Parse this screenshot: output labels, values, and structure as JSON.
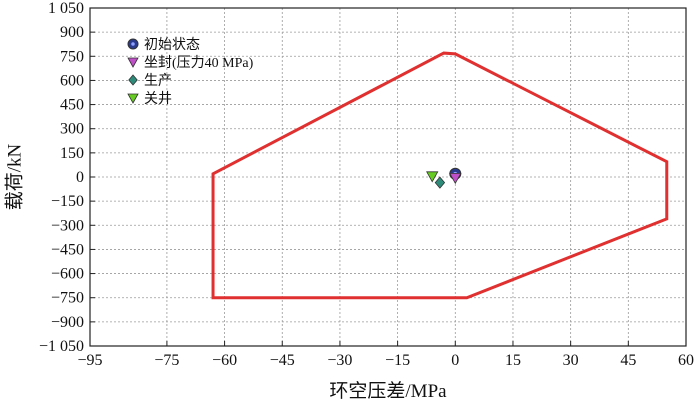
{
  "chart_data": {
    "type": "scatter",
    "xlabel": "环空压差/MPa",
    "ylabel": "载荷/kN",
    "xlim": [
      -95,
      60
    ],
    "ylim": [
      -1050,
      1050
    ],
    "x_ticks": [
      -95,
      -75,
      -60,
      -45,
      -30,
      -15,
      0,
      15,
      30,
      45,
      60
    ],
    "x_tick_labels": [
      "−95",
      "−75",
      "−60",
      "−45",
      "−30",
      "−15",
      "0",
      "15",
      "30",
      "45",
      "60"
    ],
    "y_ticks": [
      1050,
      900,
      750,
      600,
      450,
      300,
      150,
      0,
      -150,
      -300,
      -450,
      -600,
      -750,
      -900,
      -1050
    ],
    "y_tick_labels": [
      "1 050",
      "900",
      "750",
      "600",
      "450",
      "300",
      "150",
      "0",
      "−150",
      "−300",
      "−450",
      "−600",
      "−750",
      "−900",
      "−1 050"
    ],
    "grid": true,
    "legend_position": "top-left",
    "envelope": {
      "color": "#e03030",
      "points": [
        [
          -63,
          20
        ],
        [
          -3,
          770
        ],
        [
          0,
          765
        ],
        [
          55,
          95
        ],
        [
          55,
          -260
        ],
        [
          3,
          -750
        ],
        [
          -63,
          -750
        ]
      ]
    },
    "series": [
      {
        "name": "初始状态",
        "marker": "circle",
        "color": "#2b3a8c",
        "points": [
          [
            0,
            20
          ]
        ]
      },
      {
        "name": "坐封(压力40 MPa)",
        "marker": "triangle-down",
        "color": "#c050c8",
        "points": [
          [
            0,
            -5
          ]
        ]
      },
      {
        "name": "生产",
        "marker": "diamond",
        "color": "#2e8b7a",
        "points": [
          [
            -4,
            -35
          ]
        ]
      },
      {
        "name": "关井",
        "marker": "triangle-down",
        "color": "#66cc22",
        "points": [
          [
            -6,
            5
          ]
        ]
      }
    ]
  }
}
